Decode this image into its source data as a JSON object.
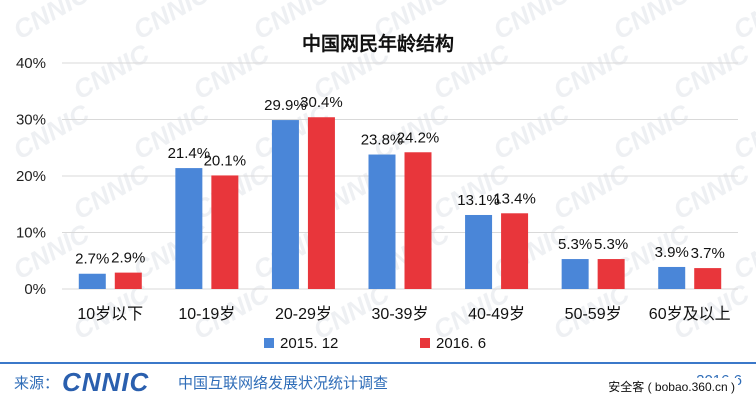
{
  "chart_data": {
    "type": "bar",
    "title": "中国网民年龄结构",
    "categories": [
      "10岁以下",
      "10-19岁",
      "20-29岁",
      "30-39岁",
      "40-49岁",
      "50-59岁",
      "60岁及以上"
    ],
    "series": [
      {
        "name": "2015. 12",
        "values": [
          2.7,
          21.4,
          29.9,
          23.8,
          13.1,
          5.3,
          3.9
        ],
        "labels": [
          "2.7%",
          "21.4%",
          "29.9%",
          "23.8%",
          "13.1%",
          "5.3%",
          "3.9%"
        ],
        "color": "#4a86d8"
      },
      {
        "name": "2016. 6",
        "values": [
          2.9,
          20.1,
          30.4,
          24.2,
          13.4,
          5.3,
          3.7
        ],
        "labels": [
          "2.9%",
          "20.1%",
          "30.4%",
          "24.2%",
          "13.4%",
          "5.3%",
          "3.7%"
        ],
        "color": "#e8363b"
      }
    ],
    "ylim": [
      0,
      40
    ],
    "yticks": [
      0,
      10,
      20,
      30,
      40
    ],
    "ytick_labels": [
      "0%",
      "10%",
      "20%",
      "30%",
      "40%"
    ],
    "ylabel": "",
    "xlabel": "",
    "grid": true,
    "legend": "bottom"
  },
  "footer": {
    "source_label": "来源：",
    "logo_text": "CNNIC",
    "source_text": "中国互联网络发展状况统计调查",
    "date": "2016.6",
    "credit": "安全客 ( bobao.360.cn )"
  },
  "watermark": "CNNIC"
}
